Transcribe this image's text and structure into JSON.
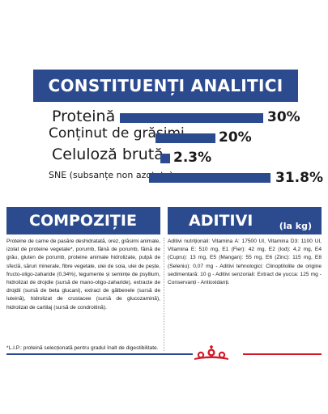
{
  "analitici": {
    "title": "CONSTITUENȚI ANALITICI",
    "rows": [
      {
        "label": "Proteină",
        "value": "30%"
      },
      {
        "label": "Conținut de grăsimi",
        "value": "20%"
      },
      {
        "label": "Celuloză brută",
        "value": "2.3%"
      },
      {
        "label": "SNE (subsanțe non azotate)",
        "value": "31.8%"
      }
    ]
  },
  "compozitie": {
    "title": "COMPOZIȚIE",
    "text": "Proteine de carne de pasăre deshidratată, orez, grăsimi animale, izolat de proteine vegetale*, porumb, făină de porumb, făină de grâu, gluten de porumb, proteine animale hidrolizate, pulpă de sfeclă, săruri minerale, fibre vegetale, ulei de soia, ulei de pește, fructo-oligo-zaharide (0,34%), tegumente și semințe de psyllium, hidrolizat de drojdie (sursă de mano-oligo-zaharide), extracte de drojdii (sursă de beta glucani), extract de gălbenele (sursă de luteină), hidrolizat de crustacee (sursă de glucozamină), hidrolizat de cartilaj (sursă de condroitină).",
    "note": "*L.I.P.: proteină selecționată pentru gradul înalt de digestibilitate."
  },
  "aditivi": {
    "title": "ADITIVI",
    "unit": "(la kg)",
    "text": "Aditivi nutriționali: Vitamina A: 17500 UI, Vitamina D3: 1100 UI, Vitamina E: 510 mg, E1 (Fier): 42 mg, E2 (Iod): 4,2 mg, E4 (Cupru): 13 mg, E5 (Mangan): 55 mg, E6 (Zinc): 115 mg, E8 (Seleniu): 0,07 mg - Aditivi tehnologici: Clinoptilolite de origine sedimentară: 10 g - Aditivi senzoriali: Extract de yucca: 125 mg - Conservanți - Antioxidanți."
  },
  "brand": {
    "logo_icon": "royal-canin-crown-logo",
    "colors": {
      "blue": "#2c4b8f",
      "red": "#d31a2a"
    }
  }
}
